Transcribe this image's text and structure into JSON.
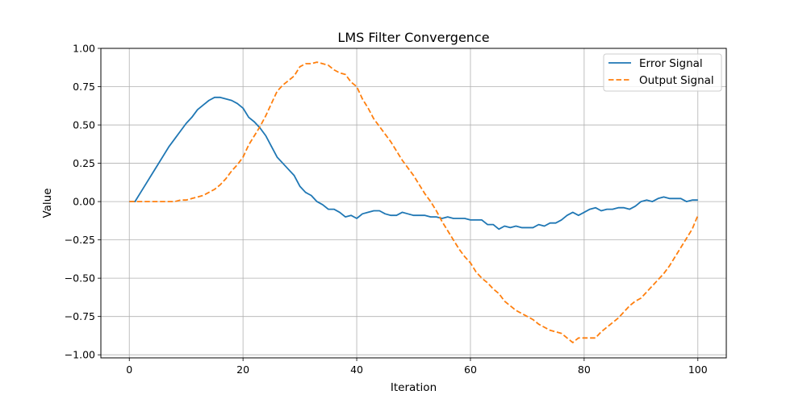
{
  "chart_data": {
    "type": "line",
    "title": "LMS Filter Convergence",
    "xlabel": "Iteration",
    "ylabel": "Value",
    "xlim": [
      -5,
      105
    ],
    "ylim": [
      -1.02,
      1.0
    ],
    "xticks": [
      0,
      20,
      40,
      60,
      80,
      100
    ],
    "xtick_labels": [
      "0",
      "20",
      "40",
      "60",
      "80",
      "100"
    ],
    "yticks": [
      -1.0,
      -0.75,
      -0.5,
      -0.25,
      0.0,
      0.25,
      0.5,
      0.75,
      1.0
    ],
    "ytick_labels": [
      "−1.00",
      "−0.75",
      "−0.50",
      "−0.25",
      "0.00",
      "0.25",
      "0.50",
      "0.75",
      "1.00"
    ],
    "grid": true,
    "legend_position": "top-right",
    "x": [
      0,
      1,
      2,
      3,
      4,
      5,
      6,
      7,
      8,
      9,
      10,
      11,
      12,
      13,
      14,
      15,
      16,
      17,
      18,
      19,
      20,
      21,
      22,
      23,
      24,
      25,
      26,
      27,
      28,
      29,
      30,
      31,
      32,
      33,
      34,
      35,
      36,
      37,
      38,
      39,
      40,
      41,
      42,
      43,
      44,
      45,
      46,
      47,
      48,
      49,
      50,
      51,
      52,
      53,
      54,
      55,
      56,
      57,
      58,
      59,
      60,
      61,
      62,
      63,
      64,
      65,
      66,
      67,
      68,
      69,
      70,
      71,
      72,
      73,
      74,
      75,
      76,
      77,
      78,
      79,
      80,
      81,
      82,
      83,
      84,
      85,
      86,
      87,
      88,
      89,
      90,
      91,
      92,
      93,
      94,
      95,
      96,
      97,
      98,
      99,
      100
    ],
    "series": [
      {
        "name": "Error Signal",
        "color": "#1f77b4",
        "style": "solid",
        "values": [
          0.0,
          0.0,
          0.06,
          0.12,
          0.18,
          0.24,
          0.3,
          0.36,
          0.41,
          0.46,
          0.51,
          0.55,
          0.6,
          0.63,
          0.66,
          0.68,
          0.68,
          0.67,
          0.66,
          0.64,
          0.61,
          0.55,
          0.52,
          0.48,
          0.43,
          0.36,
          0.29,
          0.25,
          0.21,
          0.17,
          0.1,
          0.06,
          0.04,
          0.0,
          -0.02,
          -0.05,
          -0.05,
          -0.07,
          -0.1,
          -0.09,
          -0.11,
          -0.08,
          -0.07,
          -0.06,
          -0.06,
          -0.08,
          -0.09,
          -0.09,
          -0.07,
          -0.08,
          -0.09,
          -0.09,
          -0.09,
          -0.1,
          -0.1,
          -0.11,
          -0.1,
          -0.11,
          -0.11,
          -0.11,
          -0.12,
          -0.12,
          -0.12,
          -0.15,
          -0.15,
          -0.18,
          -0.16,
          -0.17,
          -0.16,
          -0.17,
          -0.17,
          -0.17,
          -0.15,
          -0.16,
          -0.14,
          -0.14,
          -0.12,
          -0.09,
          -0.07,
          -0.09,
          -0.07,
          -0.05,
          -0.04,
          -0.06,
          -0.05,
          -0.05,
          -0.04,
          -0.04,
          -0.05,
          -0.03,
          0.0,
          0.01,
          0.0,
          0.02,
          0.03,
          0.02,
          0.02,
          0.02,
          0.0,
          0.01,
          0.01
        ]
      },
      {
        "name": "Output Signal",
        "color": "#ff7f0e",
        "style": "dashed",
        "values": [
          0.0,
          0.0,
          0.0,
          0.0,
          0.0,
          0.0,
          0.0,
          0.0,
          0.0,
          0.01,
          0.01,
          0.02,
          0.03,
          0.04,
          0.06,
          0.08,
          0.11,
          0.15,
          0.2,
          0.24,
          0.29,
          0.37,
          0.43,
          0.49,
          0.56,
          0.64,
          0.72,
          0.76,
          0.79,
          0.82,
          0.88,
          0.9,
          0.9,
          0.91,
          0.9,
          0.89,
          0.86,
          0.84,
          0.83,
          0.78,
          0.75,
          0.67,
          0.61,
          0.54,
          0.49,
          0.44,
          0.39,
          0.33,
          0.27,
          0.22,
          0.17,
          0.11,
          0.05,
          0.0,
          -0.06,
          -0.13,
          -0.19,
          -0.25,
          -0.31,
          -0.36,
          -0.4,
          -0.46,
          -0.5,
          -0.53,
          -0.57,
          -0.6,
          -0.65,
          -0.68,
          -0.71,
          -0.73,
          -0.75,
          -0.77,
          -0.8,
          -0.82,
          -0.84,
          -0.85,
          -0.86,
          -0.89,
          -0.92,
          -0.89,
          -0.89,
          -0.89,
          -0.89,
          -0.85,
          -0.82,
          -0.79,
          -0.76,
          -0.72,
          -0.68,
          -0.65,
          -0.63,
          -0.59,
          -0.55,
          -0.51,
          -0.47,
          -0.42,
          -0.36,
          -0.3,
          -0.24,
          -0.18,
          -0.09
        ]
      }
    ]
  }
}
